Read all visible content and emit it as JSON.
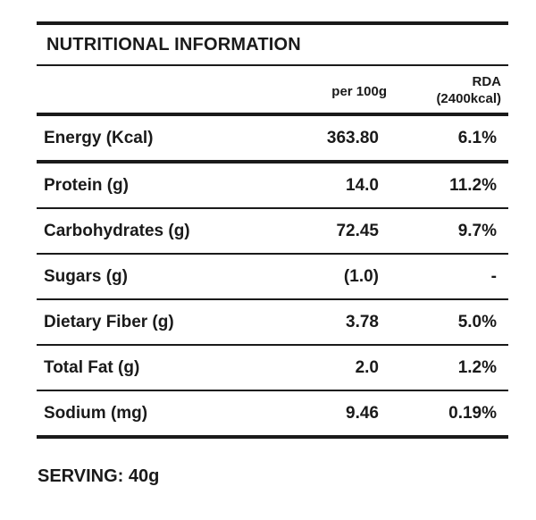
{
  "table": {
    "title": "NUTRITIONAL INFORMATION",
    "col_per": "per 100g",
    "col_rda_line1": "RDA",
    "col_rda_line2": "(2400kcal)",
    "rows": [
      {
        "label": "Energy (Kcal)",
        "per100g": "363.80",
        "rda": "6.1%"
      },
      {
        "label": "Protein (g)",
        "per100g": "14.0",
        "rda": "11.2%"
      },
      {
        "label": "Carbohydrates (g)",
        "per100g": "72.45",
        "rda": "9.7%"
      },
      {
        "label": "Sugars (g)",
        "per100g": "(1.0)",
        "rda": "-"
      },
      {
        "label": "Dietary Fiber (g)",
        "per100g": "3.78",
        "rda": "5.0%"
      },
      {
        "label": "Total Fat (g)",
        "per100g": "2.0",
        "rda": "1.2%"
      },
      {
        "label": "Sodium (mg)",
        "per100g": "9.46",
        "rda": "0.19%"
      }
    ]
  },
  "serving": "SERVING: 40g",
  "colors": {
    "ink": "#1a1a1a",
    "background": "#ffffff"
  }
}
